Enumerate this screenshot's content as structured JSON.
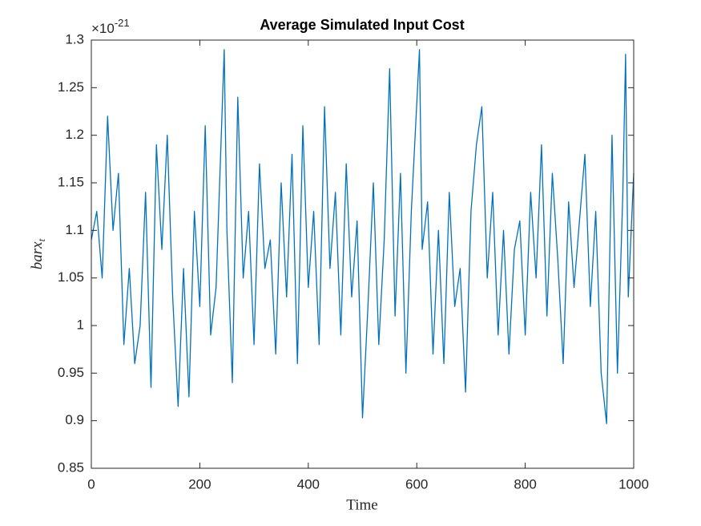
{
  "chart_data": {
    "type": "line",
    "title": "Average Simulated Input Cost",
    "xlabel": "Time",
    "ylabel": {
      "text": "barx",
      "subscript": "t"
    },
    "y_multiplier": {
      "base": "×10",
      "exponent": "-21"
    },
    "xlim": [
      0,
      1000
    ],
    "xticks": [
      0,
      200,
      400,
      600,
      800,
      1000
    ],
    "ylim": [
      0.85,
      1.3
    ],
    "yticks": [
      0.85,
      0.9,
      0.95,
      1,
      1.05,
      1.1,
      1.15,
      1.2,
      1.25,
      1.3
    ],
    "grid": false,
    "x": [
      0,
      10,
      20,
      30,
      40,
      50,
      60,
      70,
      80,
      90,
      100,
      110,
      120,
      130,
      140,
      150,
      160,
      170,
      180,
      190,
      200,
      210,
      220,
      230,
      245,
      250,
      260,
      270,
      280,
      290,
      300,
      310,
      320,
      330,
      340,
      350,
      360,
      370,
      380,
      390,
      400,
      410,
      420,
      430,
      440,
      450,
      460,
      470,
      480,
      490,
      500,
      510,
      520,
      530,
      540,
      550,
      560,
      570,
      580,
      590,
      605,
      610,
      620,
      630,
      640,
      650,
      660,
      670,
      680,
      690,
      700,
      710,
      720,
      730,
      740,
      750,
      760,
      770,
      780,
      790,
      800,
      810,
      820,
      830,
      840,
      850,
      860,
      870,
      880,
      890,
      900,
      910,
      920,
      930,
      940,
      950,
      960,
      970,
      980,
      985,
      990,
      1000
    ],
    "series": [
      {
        "color": "#0072bd",
        "values": [
          1.09,
          1.12,
          1.05,
          1.22,
          1.1,
          1.16,
          0.98,
          1.06,
          0.96,
          1.0,
          1.14,
          0.935,
          1.19,
          1.08,
          1.2,
          1.03,
          0.915,
          1.06,
          0.925,
          1.12,
          1.02,
          1.21,
          0.99,
          1.04,
          1.29,
          1.1,
          0.94,
          1.24,
          1.05,
          1.12,
          0.98,
          1.17,
          1.06,
          1.09,
          0.97,
          1.15,
          1.03,
          1.18,
          0.96,
          1.21,
          1.04,
          1.12,
          0.98,
          1.23,
          1.06,
          1.14,
          0.99,
          1.17,
          1.03,
          1.11,
          0.903,
          1.02,
          1.15,
          0.98,
          1.09,
          1.27,
          1.01,
          1.16,
          0.95,
          1.12,
          1.29,
          1.08,
          1.13,
          0.97,
          1.1,
          0.96,
          1.14,
          1.02,
          1.06,
          0.93,
          1.12,
          1.19,
          1.23,
          1.05,
          1.14,
          0.99,
          1.1,
          0.97,
          1.08,
          1.11,
          0.99,
          1.14,
          1.05,
          1.19,
          1.01,
          1.16,
          1.07,
          0.96,
          1.13,
          1.04,
          1.11,
          1.18,
          1.02,
          1.12,
          0.95,
          0.897,
          1.2,
          0.95,
          1.14,
          1.285,
          1.03,
          1.16
        ]
      }
    ]
  }
}
